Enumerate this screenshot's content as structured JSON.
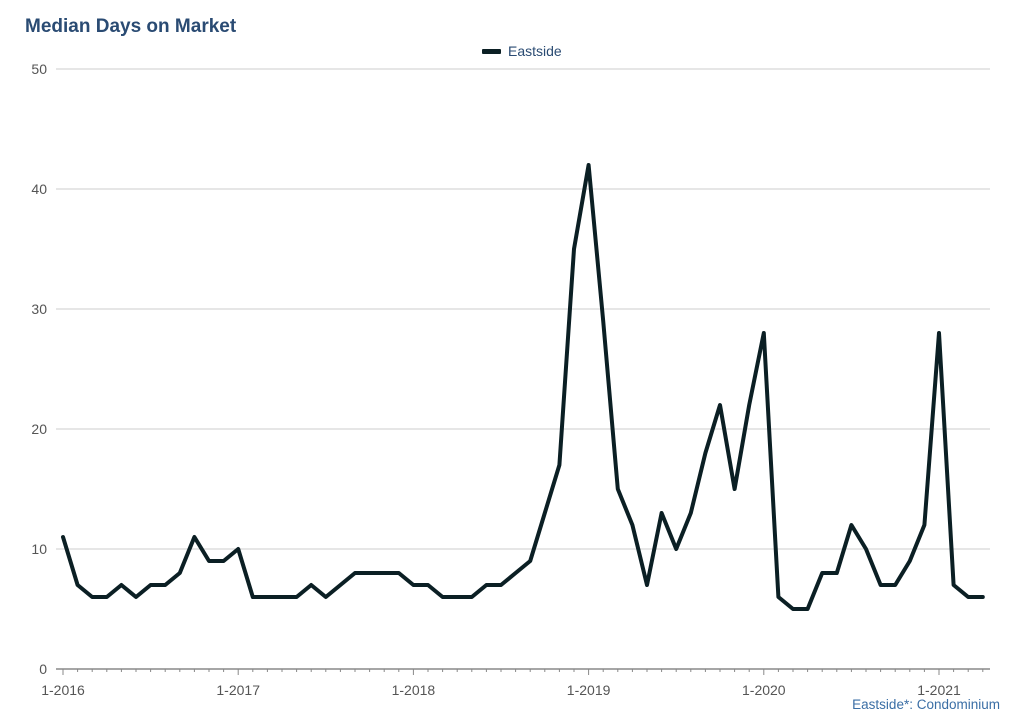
{
  "chart_data": {
    "type": "line",
    "title": "Median Days on Market",
    "xlabel": "",
    "ylabel": "",
    "ylim": [
      0,
      50
    ],
    "yticks": [
      0,
      10,
      20,
      30,
      40,
      50
    ],
    "xticks": [
      "1-2016",
      "1-2017",
      "1-2018",
      "1-2019",
      "1-2020",
      "1-2021"
    ],
    "x_start": "2016-01",
    "grid": true,
    "legend_position": "top-center",
    "footnote": "Eastside*: Condominium",
    "series": [
      {
        "name": "Eastside",
        "color": "#0b1f24",
        "values": [
          11,
          7,
          6,
          6,
          7,
          6,
          7,
          7,
          8,
          11,
          9,
          9,
          10,
          6,
          6,
          6,
          6,
          7,
          6,
          7,
          8,
          8,
          8,
          8,
          7,
          7,
          6,
          6,
          6,
          7,
          7,
          8,
          9,
          13,
          17,
          35,
          42,
          29,
          15,
          12,
          7,
          13,
          10,
          13,
          18,
          22,
          15,
          22,
          28,
          6,
          5,
          5,
          8,
          8,
          12,
          10,
          7,
          7,
          9,
          12,
          28,
          7,
          6,
          6
        ]
      }
    ]
  }
}
